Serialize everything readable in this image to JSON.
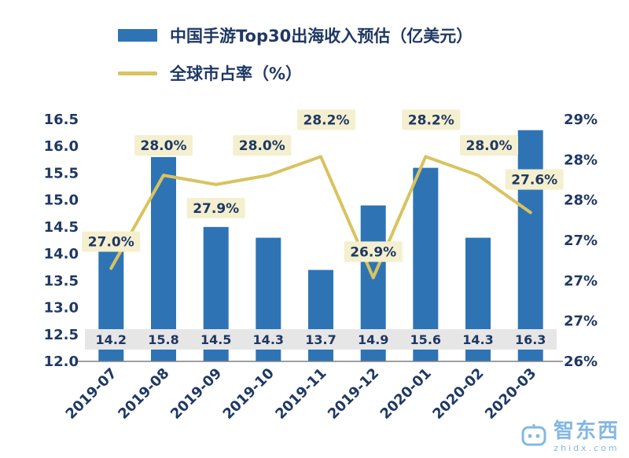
{
  "legend": {
    "bar_label": "中国手游Top30出海收入预估（亿美元）",
    "line_label": "全球市占率（%）"
  },
  "colors": {
    "bar": "#2E74B5",
    "line": "#D9C35F",
    "pct_label_bg": "#F4EFCE",
    "bar_label_strip_bg": "#E7E6E6",
    "text": "#1F3864",
    "axis_line": "#7F7F7F",
    "watermark_blue": "#85B7E2"
  },
  "chart_data": {
    "type": "combo",
    "categories": [
      "2019-07",
      "2019-08",
      "2019-09",
      "2019-10",
      "2019-11",
      "2019-12",
      "2020-01",
      "2020-02",
      "2020-03"
    ],
    "series": [
      {
        "name": "中国手游Top30出海收入预估（亿美元）",
        "type": "bar",
        "axis": "left",
        "values": [
          14.2,
          15.8,
          14.5,
          14.3,
          13.7,
          14.9,
          15.6,
          14.3,
          16.3
        ],
        "data_labels": [
          "14.2",
          "15.8",
          "14.5",
          "14.3",
          "13.7",
          "14.9",
          "15.6",
          "14.3",
          "16.3"
        ]
      },
      {
        "name": "全球市占率（%）",
        "type": "line",
        "axis": "right",
        "values": [
          27.0,
          28.0,
          27.9,
          28.0,
          28.2,
          26.9,
          28.2,
          28.0,
          27.6
        ],
        "data_labels": [
          "27.0%",
          "28.0%",
          "27.9%",
          "28.0%",
          "28.2%",
          "26.9%",
          "28.2%",
          "28.0%",
          "27.6%"
        ],
        "label_positions": [
          "above",
          "above",
          "below",
          "above",
          "above",
          "above",
          "above",
          "above",
          "above"
        ]
      }
    ],
    "left_axis": {
      "min": 12.0,
      "max": 16.5,
      "tick_labels": [
        "16.5",
        "16.0",
        "15.5",
        "15.0",
        "14.5",
        "14.0",
        "13.5",
        "13.0",
        "12.5",
        "12.0"
      ]
    },
    "right_axis": {
      "min": 26,
      "max": 29,
      "tick_labels": [
        "29%",
        "28%",
        "28%",
        "27%",
        "27%",
        "27%",
        "26%"
      ]
    },
    "grid": "none",
    "legend_position": "top-left"
  },
  "watermark": {
    "text": "智东西",
    "sub": "zhidx.com"
  }
}
